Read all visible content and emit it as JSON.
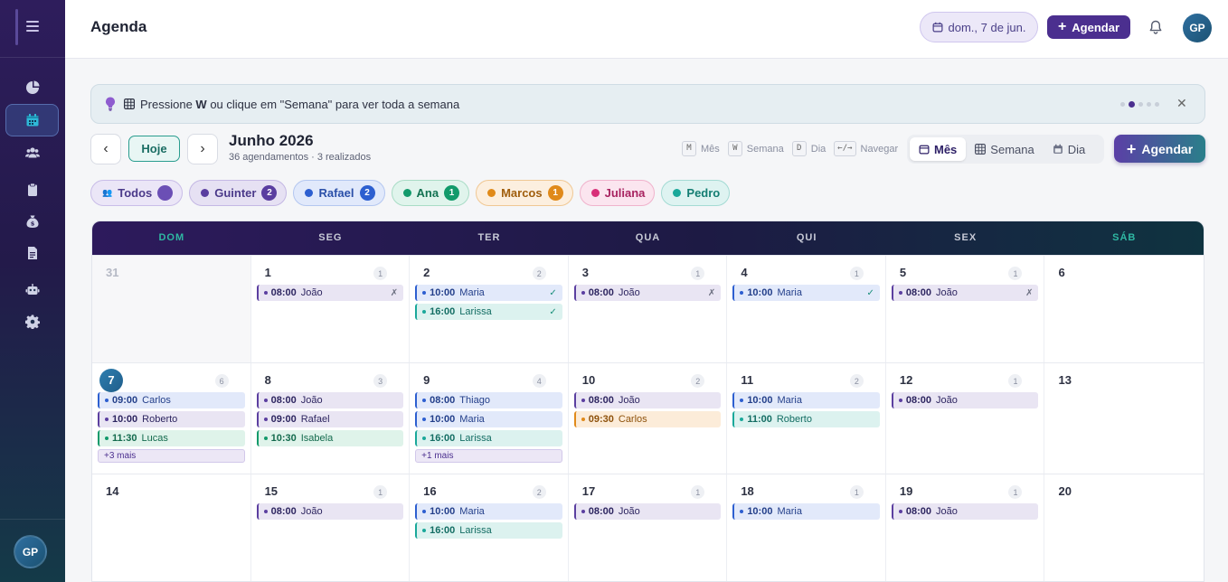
{
  "app": {
    "title": "Agenda",
    "date_pill": "dom., 7 de jun.",
    "agendar_label": "Agendar",
    "user_initials": "GP"
  },
  "sidebar": {
    "items": [
      {
        "icon": "pie-chart-icon",
        "active": false
      },
      {
        "icon": "calendar-icon",
        "active": true
      },
      {
        "icon": "users-icon",
        "active": false
      },
      {
        "icon": "clipboard-icon",
        "active": false
      },
      {
        "icon": "money-bag-icon",
        "active": false
      },
      {
        "icon": "document-icon",
        "active": false
      },
      {
        "icon": "robot-icon",
        "active": false
      },
      {
        "icon": "gear-icon",
        "active": false
      }
    ],
    "user_initials": "GP"
  },
  "hint": {
    "pre": "Pressione ",
    "key": "W",
    "post": " ou clique em \"Semana\" para ver toda a semana",
    "dots_total": 5,
    "dots_active": 1
  },
  "toolbar": {
    "today_label": "Hoje",
    "month_title": "Junho 2026",
    "month_sub": "36 agendamentos · 3 realizados",
    "shortcuts": [
      {
        "key": "M",
        "label": "Mês"
      },
      {
        "key": "W",
        "label": "Semana"
      },
      {
        "key": "D",
        "label": "Dia"
      },
      {
        "key": "←/→",
        "label": "Navegar"
      }
    ],
    "views": [
      {
        "label": "Mês",
        "active": true
      },
      {
        "label": "Semana",
        "active": false
      },
      {
        "label": "Dia",
        "active": false
      }
    ],
    "agendar_label": "Agendar"
  },
  "filters": [
    {
      "label": "Todos",
      "count": "",
      "color": "#6b4fb5",
      "bg": "#ebe6f7",
      "border": "#c9bde8",
      "text": "#4b3a8a"
    },
    {
      "label": "Guinter",
      "count": "2",
      "color": "#5a3ea0",
      "bg": "#e6e1f3",
      "border": "#c4b8e4",
      "text": "#4b3a8a"
    },
    {
      "label": "Rafael",
      "count": "2",
      "color": "#2d5fd0",
      "bg": "#e1e9fb",
      "border": "#b4c7f0",
      "text": "#2a4fa8"
    },
    {
      "label": "Ana",
      "count": "1",
      "color": "#129a6b",
      "bg": "#e0f4ec",
      "border": "#a9dcc6",
      "text": "#137252"
    },
    {
      "label": "Marcos",
      "count": "1",
      "color": "#e08a1a",
      "bg": "#fcefdf",
      "border": "#f0c894",
      "text": "#a05e0d"
    },
    {
      "label": "Juliana",
      "count": "",
      "color": "#d82f78",
      "bg": "#fbe5ef",
      "border": "#f0b3cc",
      "text": "#a82360"
    },
    {
      "label": "Pedro",
      "count": "",
      "color": "#1aa89a",
      "bg": "#def3f1",
      "border": "#a4dbd4",
      "text": "#137d72"
    }
  ],
  "weekdays": [
    "DOM",
    "SEG",
    "TER",
    "QUA",
    "QUI",
    "SEX",
    "SÁB"
  ],
  "weeks": [
    [
      {
        "n": "31",
        "other": true,
        "count": "",
        "events": []
      },
      {
        "n": "1",
        "count": "1",
        "events": [
          {
            "t": "08:00",
            "name": "João",
            "c": "p",
            "s": "✗"
          }
        ]
      },
      {
        "n": "2",
        "count": "2",
        "events": [
          {
            "t": "10:00",
            "name": "Maria",
            "c": "b",
            "s": "✓"
          },
          {
            "t": "16:00",
            "name": "Larissa",
            "c": "t",
            "s": "✓"
          }
        ]
      },
      {
        "n": "3",
        "count": "1",
        "events": [
          {
            "t": "08:00",
            "name": "João",
            "c": "p",
            "s": "✗"
          }
        ]
      },
      {
        "n": "4",
        "count": "1",
        "events": [
          {
            "t": "10:00",
            "name": "Maria",
            "c": "b",
            "s": "✓"
          }
        ]
      },
      {
        "n": "5",
        "count": "1",
        "events": [
          {
            "t": "08:00",
            "name": "João",
            "c": "p",
            "s": "✗"
          }
        ]
      },
      {
        "n": "6",
        "count": "",
        "events": []
      }
    ],
    [
      {
        "n": "7",
        "today": true,
        "count": "6",
        "events": [
          {
            "t": "09:00",
            "name": "Carlos",
            "c": "b",
            "s": ""
          },
          {
            "t": "10:00",
            "name": "Roberto",
            "c": "p",
            "s": ""
          },
          {
            "t": "11:30",
            "name": "Lucas",
            "c": "g",
            "s": ""
          }
        ],
        "more": "+3 mais"
      },
      {
        "n": "8",
        "count": "3",
        "events": [
          {
            "t": "08:00",
            "name": "João",
            "c": "p",
            "s": ""
          },
          {
            "t": "09:00",
            "name": "Rafael",
            "c": "p",
            "s": ""
          },
          {
            "t": "10:30",
            "name": "Isabela",
            "c": "g",
            "s": ""
          }
        ]
      },
      {
        "n": "9",
        "count": "4",
        "events": [
          {
            "t": "08:00",
            "name": "Thiago",
            "c": "b",
            "s": ""
          },
          {
            "t": "10:00",
            "name": "Maria",
            "c": "b",
            "s": ""
          },
          {
            "t": "16:00",
            "name": "Larissa",
            "c": "t",
            "s": ""
          }
        ],
        "more": "+1 mais"
      },
      {
        "n": "10",
        "count": "2",
        "events": [
          {
            "t": "08:00",
            "name": "João",
            "c": "p",
            "s": ""
          },
          {
            "t": "09:30",
            "name": "Carlos",
            "c": "o",
            "s": ""
          }
        ]
      },
      {
        "n": "11",
        "count": "2",
        "events": [
          {
            "t": "10:00",
            "name": "Maria",
            "c": "b",
            "s": ""
          },
          {
            "t": "11:00",
            "name": "Roberto",
            "c": "t",
            "s": ""
          }
        ]
      },
      {
        "n": "12",
        "count": "1",
        "events": [
          {
            "t": "08:00",
            "name": "João",
            "c": "p",
            "s": ""
          }
        ]
      },
      {
        "n": "13",
        "count": "",
        "events": []
      }
    ],
    [
      {
        "n": "14",
        "count": "",
        "events": []
      },
      {
        "n": "15",
        "count": "1",
        "events": [
          {
            "t": "08:00",
            "name": "João",
            "c": "p",
            "s": ""
          }
        ]
      },
      {
        "n": "16",
        "count": "2",
        "events": [
          {
            "t": "10:00",
            "name": "Maria",
            "c": "b",
            "s": ""
          },
          {
            "t": "16:00",
            "name": "Larissa",
            "c": "t",
            "s": ""
          }
        ]
      },
      {
        "n": "17",
        "count": "1",
        "events": [
          {
            "t": "08:00",
            "name": "João",
            "c": "p",
            "s": ""
          }
        ]
      },
      {
        "n": "18",
        "count": "1",
        "events": [
          {
            "t": "10:00",
            "name": "Maria",
            "c": "b",
            "s": ""
          }
        ]
      },
      {
        "n": "19",
        "count": "1",
        "events": [
          {
            "t": "08:00",
            "name": "João",
            "c": "p",
            "s": ""
          }
        ]
      },
      {
        "n": "20",
        "count": "",
        "events": []
      }
    ]
  ],
  "event_colors": {
    "p": {
      "bg": "#e9e5f3",
      "border": "#5b3fa0",
      "text": "#2d2560"
    },
    "b": {
      "bg": "#e2e9fa",
      "border": "#2d5fd0",
      "text": "#233f8a"
    },
    "t": {
      "bg": "#dcf2ef",
      "border": "#1aa89a",
      "text": "#136d63"
    },
    "g": {
      "bg": "#dff3ea",
      "border": "#129a6b",
      "text": "#136a4d"
    },
    "o": {
      "bg": "#fcecd9",
      "border": "#e08a1a",
      "text": "#8e520c"
    }
  }
}
